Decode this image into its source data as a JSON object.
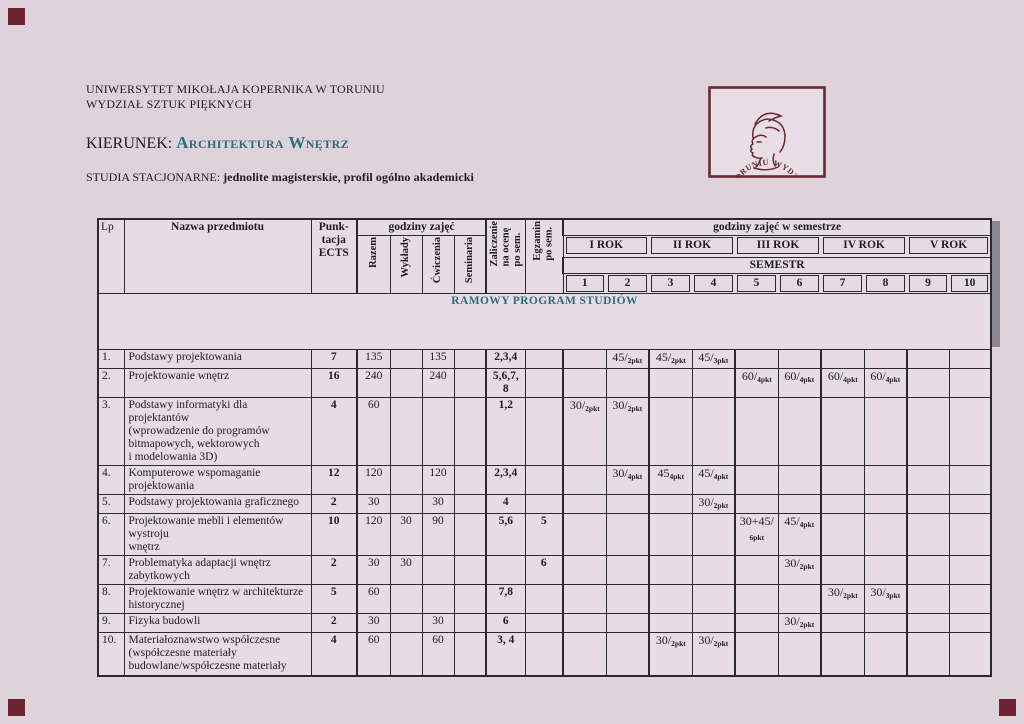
{
  "colors": {
    "page_background": "#dfd3db",
    "accent_teal": "#2d6b7d",
    "maroon": "#6b2733",
    "cell_pink": "#e8dce4",
    "white_band": "#fbf9fa"
  },
  "header": {
    "university": "UNIWERSYTET MIKOŁAJA KOPERNIKA W TORUNIU",
    "faculty": "WYDZIAŁ SZTUK PIĘKNYCH",
    "kierunek_label": "KIERUNEK:",
    "kierunek_value": "Architektura Wnętrz",
    "studia_label": "STUDIA STACJONARNE:",
    "studia_value": "jednolite magisterskie, profil ogólno akademicki"
  },
  "logo": {
    "ring_text": "WYDZIAŁ SZTUK PIĘKNYCH UMK W TORUNIU ·"
  },
  "table": {
    "title": "RAMOWY PROGRAM STUDIÓW",
    "headers": {
      "lp": "Lp",
      "name": "Nazwa przedmiotu",
      "ects_lines": [
        "Punk-",
        "tacja",
        "ECTS"
      ],
      "hours_group": "godziny zajęć",
      "razem": "Razem",
      "wyklady": "Wykłady",
      "cwiczenia": "Ćwiczenia",
      "seminaria": "Seminaria",
      "zal_lines": [
        "Zaliczenie",
        "na ocenę",
        "po sem."
      ],
      "egz_lines": [
        "Egzamin",
        "po sem."
      ],
      "sem_group": "godziny zajęć w semestrze",
      "years": [
        "I ROK",
        "II ROK",
        "III ROK",
        "IV ROK",
        "V ROK"
      ],
      "semestr": "SEMESTR",
      "sem_numbers": [
        "1",
        "2",
        "3",
        "4",
        "5",
        "6",
        "7",
        "8",
        "9",
        "10"
      ]
    },
    "rows": [
      {
        "lp": "1.",
        "name_lines": [
          "Podstawy projektowania"
        ],
        "ects": "7",
        "razem": "135",
        "wyklady": "",
        "cwiczenia": "135",
        "seminaria": "",
        "zal_lines": [
          "2,3,4"
        ],
        "egz": "",
        "sems": {
          "2": {
            "main": "45/",
            "sub": "2pkt"
          },
          "3": {
            "main": "45/",
            "sub": "2pkt"
          },
          "4": {
            "main": "45/",
            "sub": "3pkt"
          }
        }
      },
      {
        "lp": "2.",
        "name_lines": [
          "Projektowanie wnętrz"
        ],
        "ects": "16",
        "razem": "240",
        "wyklady": "",
        "cwiczenia": "240",
        "seminaria": "",
        "zal_lines": [
          "5,6,7,",
          "8"
        ],
        "egz": "",
        "sems": {
          "5": {
            "main": "60/",
            "sub": "4pkt"
          },
          "6": {
            "main": "60/",
            "sub": "4pkt"
          },
          "7": {
            "main": "60/",
            "sub": "4pkt"
          },
          "8": {
            "main": "60/",
            "sub": "4pkt"
          }
        }
      },
      {
        "lp": "3.",
        "name_lines": [
          "Podstawy informatyki dla projektantów",
          "(wprowadzenie do programów",
          "bitmapowych, wektorowych",
          "i modelowania 3D)"
        ],
        "ects": "4",
        "razem": "60",
        "wyklady": "",
        "cwiczenia": "",
        "seminaria": "",
        "zal_lines": [
          "1,2"
        ],
        "egz": "",
        "sems": {
          "1": {
            "main": "30/",
            "sub": "2pkt"
          },
          "2": {
            "main": "30/",
            "sub": "2pkt"
          }
        }
      },
      {
        "lp": "4.",
        "name_lines": [
          "Komputerowe wspomaganie",
          "projektowania"
        ],
        "ects": "12",
        "razem": "120",
        "wyklady": "",
        "cwiczenia": "120",
        "seminaria": "",
        "zal_lines": [
          "2,3,4"
        ],
        "egz": "",
        "sems": {
          "2": {
            "main": "30/",
            "sub": "4pkt"
          },
          "3": {
            "main": "45",
            "sub": "4pkt"
          },
          "4": {
            "main": "45/",
            "sub": "4pkt"
          }
        }
      },
      {
        "lp": "5.",
        "name_lines": [
          "Podstawy projektowania graficznego"
        ],
        "ects": "2",
        "razem": "30",
        "wyklady": "",
        "cwiczenia": "30",
        "seminaria": "",
        "zal_lines": [
          "4"
        ],
        "egz": "",
        "sems": {
          "4": {
            "main": "30/",
            "sub": "2pkt"
          }
        }
      },
      {
        "lp": "6.",
        "name_lines": [
          "Projektowanie mebli i elementów wystroju",
          "wnętrz"
        ],
        "ects": "10",
        "razem": "120",
        "wyklady": "30",
        "cwiczenia": "90",
        "seminaria": "",
        "zal_lines": [
          "5,6"
        ],
        "egz": "5",
        "sems": {
          "5": {
            "main": "30+45/",
            "sub": "6pkt",
            "sub_on_new_line": true
          },
          "6": {
            "main": "45/",
            "sub": "4pkt"
          }
        }
      },
      {
        "lp": "7.",
        "name_lines": [
          "Problematyka adaptacji wnętrz",
          "zabytkowych"
        ],
        "ects": "2",
        "razem": "30",
        "wyklady": "30",
        "cwiczenia": "",
        "seminaria": "",
        "zal_lines": [],
        "egz": "6",
        "sems": {
          "6": {
            "main": "30/",
            "sub": "2pkt"
          }
        }
      },
      {
        "lp": "8.",
        "name_lines": [
          "Projektowanie wnętrz w architekturze",
          "historycznej"
        ],
        "ects": "5",
        "razem": "60",
        "wyklady": "",
        "cwiczenia": "",
        "seminaria": "",
        "zal_lines": [
          "7,8"
        ],
        "egz": "",
        "sems": {
          "7": {
            "main": "30/",
            "sub": "2pkt"
          },
          "8": {
            "main": "30/",
            "sub": "3pkt"
          }
        }
      },
      {
        "lp": "9.",
        "name_lines": [
          "Fizyka budowli"
        ],
        "ects": "2",
        "razem": "30",
        "wyklady": "",
        "cwiczenia": "30",
        "seminaria": "",
        "zal_lines": [
          "6"
        ],
        "egz": "",
        "sems": {
          "6": {
            "main": "30/",
            "sub": "2pkt"
          }
        }
      },
      {
        "lp": "10.",
        "name_lines": [
          "Materiałoznawstwo współczesne",
          "(współczesne materiały",
          "budowlane/współczesne materiały"
        ],
        "ects": "4",
        "razem": "60",
        "wyklady": "",
        "cwiczenia": "60",
        "seminaria": "",
        "zal_lines": [
          "3, 4"
        ],
        "egz": "",
        "sems": {
          "3": {
            "main": "30/",
            "sub": "2pkt"
          },
          "4": {
            "main": "30/",
            "sub": "2pkt"
          }
        }
      }
    ]
  }
}
